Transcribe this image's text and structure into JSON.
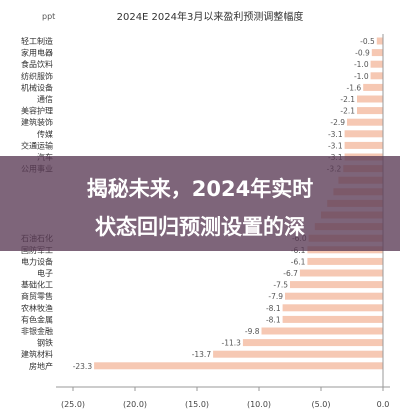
{
  "colors": {
    "bar": "#f6c8b3",
    "axis": "#999999",
    "banner": "#5a3a55"
  },
  "overlay": {
    "line1": "揭秘未来，2024年实时",
    "line2": "状态回归预测设置的深"
  },
  "chart_data": {
    "type": "bar",
    "orientation": "horizontal",
    "title": "2024E 2024年3月以来盈利预测调整幅度",
    "unit_label": "ppt",
    "xlim": [
      -25,
      0
    ],
    "x_ticks": [
      -25,
      -20,
      -15,
      -10,
      -5,
      0
    ],
    "x_tick_labels": [
      "(25.0)",
      "(20.0)",
      "(15.0)",
      "(10.0)",
      "(5.0)",
      "0.0"
    ],
    "categories": [
      "轻工制造",
      "家用电器",
      "食品饮料",
      "纺织服饰",
      "机械设备",
      "通信",
      "美容护理",
      "建筑装饰",
      "传媒",
      "交通运输",
      "汽车",
      "公用事业",
      "",
      "",
      "",
      "",
      "",
      "石油石化",
      "国防军工",
      "电力设备",
      "电子",
      "基础化工",
      "商贸零售",
      "农林牧渔",
      "有色金属",
      "非银金融",
      "钢铁",
      "建筑材料",
      "房地产"
    ],
    "values": [
      -0.5,
      -0.9,
      -1.0,
      -1.0,
      -1.6,
      -2.1,
      -2.1,
      -2.9,
      -3.1,
      -3.1,
      -3.1,
      -3.2,
      -3.6,
      -4.0,
      -4.5,
      -5.0,
      -5.5,
      -6.0,
      -6.1,
      -6.1,
      -6.7,
      -7.5,
      -7.9,
      -8.1,
      -8.1,
      -9.8,
      -11.3,
      -13.7,
      -23.3
    ],
    "value_labels": [
      "-0.5",
      "-0.9",
      "-1.0",
      "-1.0",
      "-1.6",
      "-2.1",
      "-2.1",
      "-2.9",
      "-3.1",
      "-3.1",
      "-3.1",
      "-3.2",
      "",
      "",
      "",
      "",
      "",
      "-6.0",
      "-6.1",
      "-6.1",
      "-6.7",
      "-7.5",
      "-7.9",
      "-8.1",
      "-8.1",
      "-9.8",
      "-11.3",
      "-13.7",
      "-23.3"
    ]
  }
}
